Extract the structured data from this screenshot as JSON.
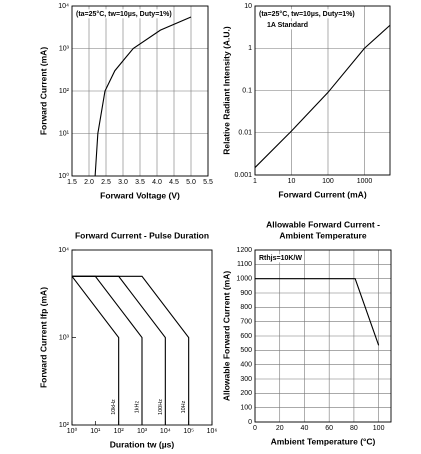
{
  "chart_data": [
    {
      "type": "line",
      "xlabel": "Forward Voltage (V)",
      "ylabel": "Forward Current (mA)",
      "annotations": [
        "(ta=25°C, tw=10µs, Duty=1%)"
      ],
      "xscale": "linear",
      "yscale": "log",
      "grid": true,
      "xlim": [
        1.5,
        5.5
      ],
      "xticks": [
        1.5,
        {
          "value": 2,
          "label": "2.0"
        },
        2.5,
        {
          "value": 3,
          "label": "3.0"
        },
        3.5,
        {
          "value": 4,
          "label": "4.0"
        },
        4.5,
        {
          "value": 5,
          "label": "5.0"
        },
        5.5
      ],
      "ylim": [
        1,
        10000
      ],
      "yticks": [
        {
          "value": 1,
          "label": "10⁰"
        },
        {
          "value": 10,
          "label": "10¹"
        },
        {
          "value": 100,
          "label": "10²"
        },
        {
          "value": 1000,
          "label": "10³"
        },
        {
          "value": 10000,
          "label": "10⁴"
        }
      ],
      "series": [
        {
          "color": "#000000",
          "x": [
            2.18,
            2.26,
            2.47,
            2.76,
            3.3,
            4.1,
            5.0
          ],
          "values": [
            1,
            10,
            100,
            300,
            1000,
            2700,
            5500
          ]
        }
      ]
    },
    {
      "type": "line",
      "xlabel": "Forward Current (mA)",
      "ylabel": "Relative Radiant Intensity (A.U.)",
      "annotations": [
        "(ta=25°C, tw=10µs, Duty=1%)",
        "1A Standard"
      ],
      "xscale": "log",
      "yscale": "log",
      "grid": true,
      "xlim": [
        1,
        5000
      ],
      "xticks": [
        1,
        10,
        100,
        1000
      ],
      "ylim": [
        0.001,
        10
      ],
      "yticks": [
        0.001,
        0.01,
        0.1,
        1,
        10
      ],
      "series": [
        {
          "color": "#000000",
          "x": [
            1,
            10,
            100,
            1000,
            5000
          ],
          "values": [
            0.0015,
            0.011,
            0.09,
            1,
            3.5
          ]
        }
      ]
    },
    {
      "type": "line",
      "title": "Forward Current - Pulse Duration",
      "xlabel": "Duration tw (µs)",
      "ylabel": "Forward Current Ifp (mA)",
      "xscale": "log",
      "yscale": "log",
      "grid": false,
      "xlim": [
        1,
        1000000
      ],
      "xticks": [
        {
          "value": 1,
          "label": "10⁰"
        },
        {
          "value": 10,
          "label": "10¹"
        },
        {
          "value": 100,
          "label": "10²"
        },
        {
          "value": 1000,
          "label": "10³"
        },
        {
          "value": 10000,
          "label": "10⁴"
        },
        {
          "value": 100000,
          "label": "10⁵"
        },
        {
          "value": 1000000,
          "label": "10⁶"
        }
      ],
      "ylim": [
        100,
        10000
      ],
      "yticks": [
        {
          "value": 100,
          "label": "10²"
        },
        {
          "value": 1000,
          "label": "10³"
        },
        {
          "value": 10000,
          "label": "10⁴"
        }
      ],
      "series": [
        {
          "name": "10kHz",
          "color": "#000000",
          "x": [
            1,
            100,
            100
          ],
          "values": [
            5000,
            1000,
            100
          ]
        },
        {
          "name": "1kHz",
          "color": "#000000",
          "x": [
            1,
            10,
            1000,
            1000
          ],
          "values": [
            5000,
            5000,
            1000,
            100
          ]
        },
        {
          "name": "100Hz",
          "color": "#000000",
          "x": [
            1,
            100,
            10000,
            10000
          ],
          "values": [
            5000,
            5000,
            1000,
            100
          ]
        },
        {
          "name": "10Hz",
          "color": "#000000",
          "x": [
            1,
            1000,
            100000,
            100000
          ],
          "values": [
            5000,
            5000,
            1000,
            100
          ]
        }
      ]
    },
    {
      "type": "line",
      "title": [
        "Allowable Forward Current -",
        "Ambient Temperature"
      ],
      "xlabel": "Ambient Temperature (°C)",
      "ylabel": "Allowable Forward Current (mA)",
      "annotations": [
        "Rthjs=10K/W"
      ],
      "xscale": "linear",
      "yscale": "linear",
      "grid": true,
      "xlim": [
        0,
        110
      ],
      "xticks": [
        0,
        20,
        40,
        60,
        80,
        100
      ],
      "ylim": [
        0,
        1200
      ],
      "yticks": [
        0,
        100,
        200,
        300,
        400,
        500,
        600,
        700,
        800,
        900,
        1000,
        1100,
        1200
      ],
      "series": [
        {
          "color": "#000000",
          "x": [
            0,
            81,
            100
          ],
          "values": [
            1000,
            1000,
            535
          ]
        }
      ]
    }
  ]
}
